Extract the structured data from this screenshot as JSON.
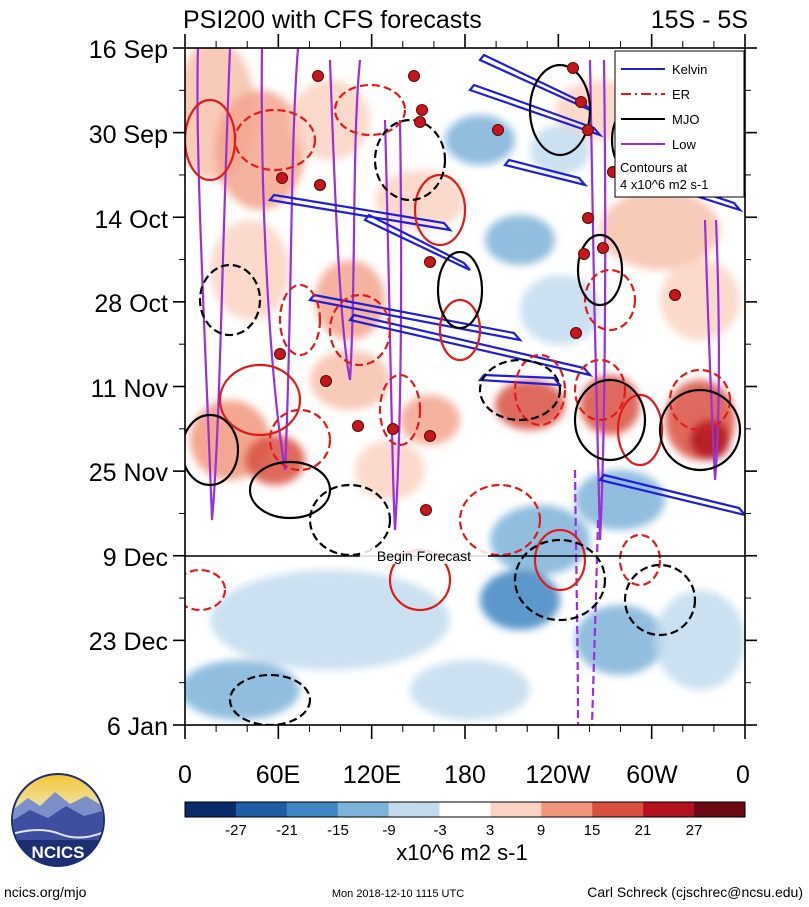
{
  "chart_data": {
    "type": "heatmap",
    "title": "PSI200 with CFS forecasts",
    "region": "15S - 5S",
    "x_ticks": [
      "0",
      "60E",
      "120E",
      "180",
      "120W",
      "60W",
      "0"
    ],
    "y_ticks": [
      "16 Sep",
      "30 Sep",
      "14 Oct",
      "28 Oct",
      "11 Nov",
      "25 Nov",
      "9 Dec",
      "23 Dec",
      "6 Jan"
    ],
    "forecast_label": "Begin Forecast",
    "forecast_start": "9 Dec",
    "legend": {
      "placement": "top-right",
      "items": [
        {
          "name": "Kelvin",
          "color": "#1f1fd6",
          "dash": "solid"
        },
        {
          "name": "ER",
          "color": "#e11b1b",
          "dash": "dashed"
        },
        {
          "name": "MJO",
          "color": "#000000",
          "dash": "solid"
        },
        {
          "name": "Low",
          "color": "#9a30d8",
          "dash": "solid"
        }
      ],
      "note_line1": "Contours at",
      "note_line2": "4 x10^6 m2 s-1"
    },
    "colorbar": {
      "labels": [
        "-27",
        "-21",
        "-15",
        "-9",
        "-3",
        "3",
        "9",
        "15",
        "21",
        "27"
      ],
      "colors": [
        "#0a2a6b",
        "#1f5da6",
        "#3f86c2",
        "#7eb3d9",
        "#c2dcee",
        "#ffffff",
        "#fbd3c2",
        "#f1967c",
        "#d9503f",
        "#b3121e",
        "#6b0a12"
      ],
      "units": "x10^6 m2 s-1"
    }
  },
  "footer": {
    "logo_text": "NCICS",
    "site": "ncics.org/mjo",
    "timestamp": "Mon 2018-12-10 1115 UTC",
    "author": "Carl Schreck (cjschrec@ncsu.edu)"
  }
}
